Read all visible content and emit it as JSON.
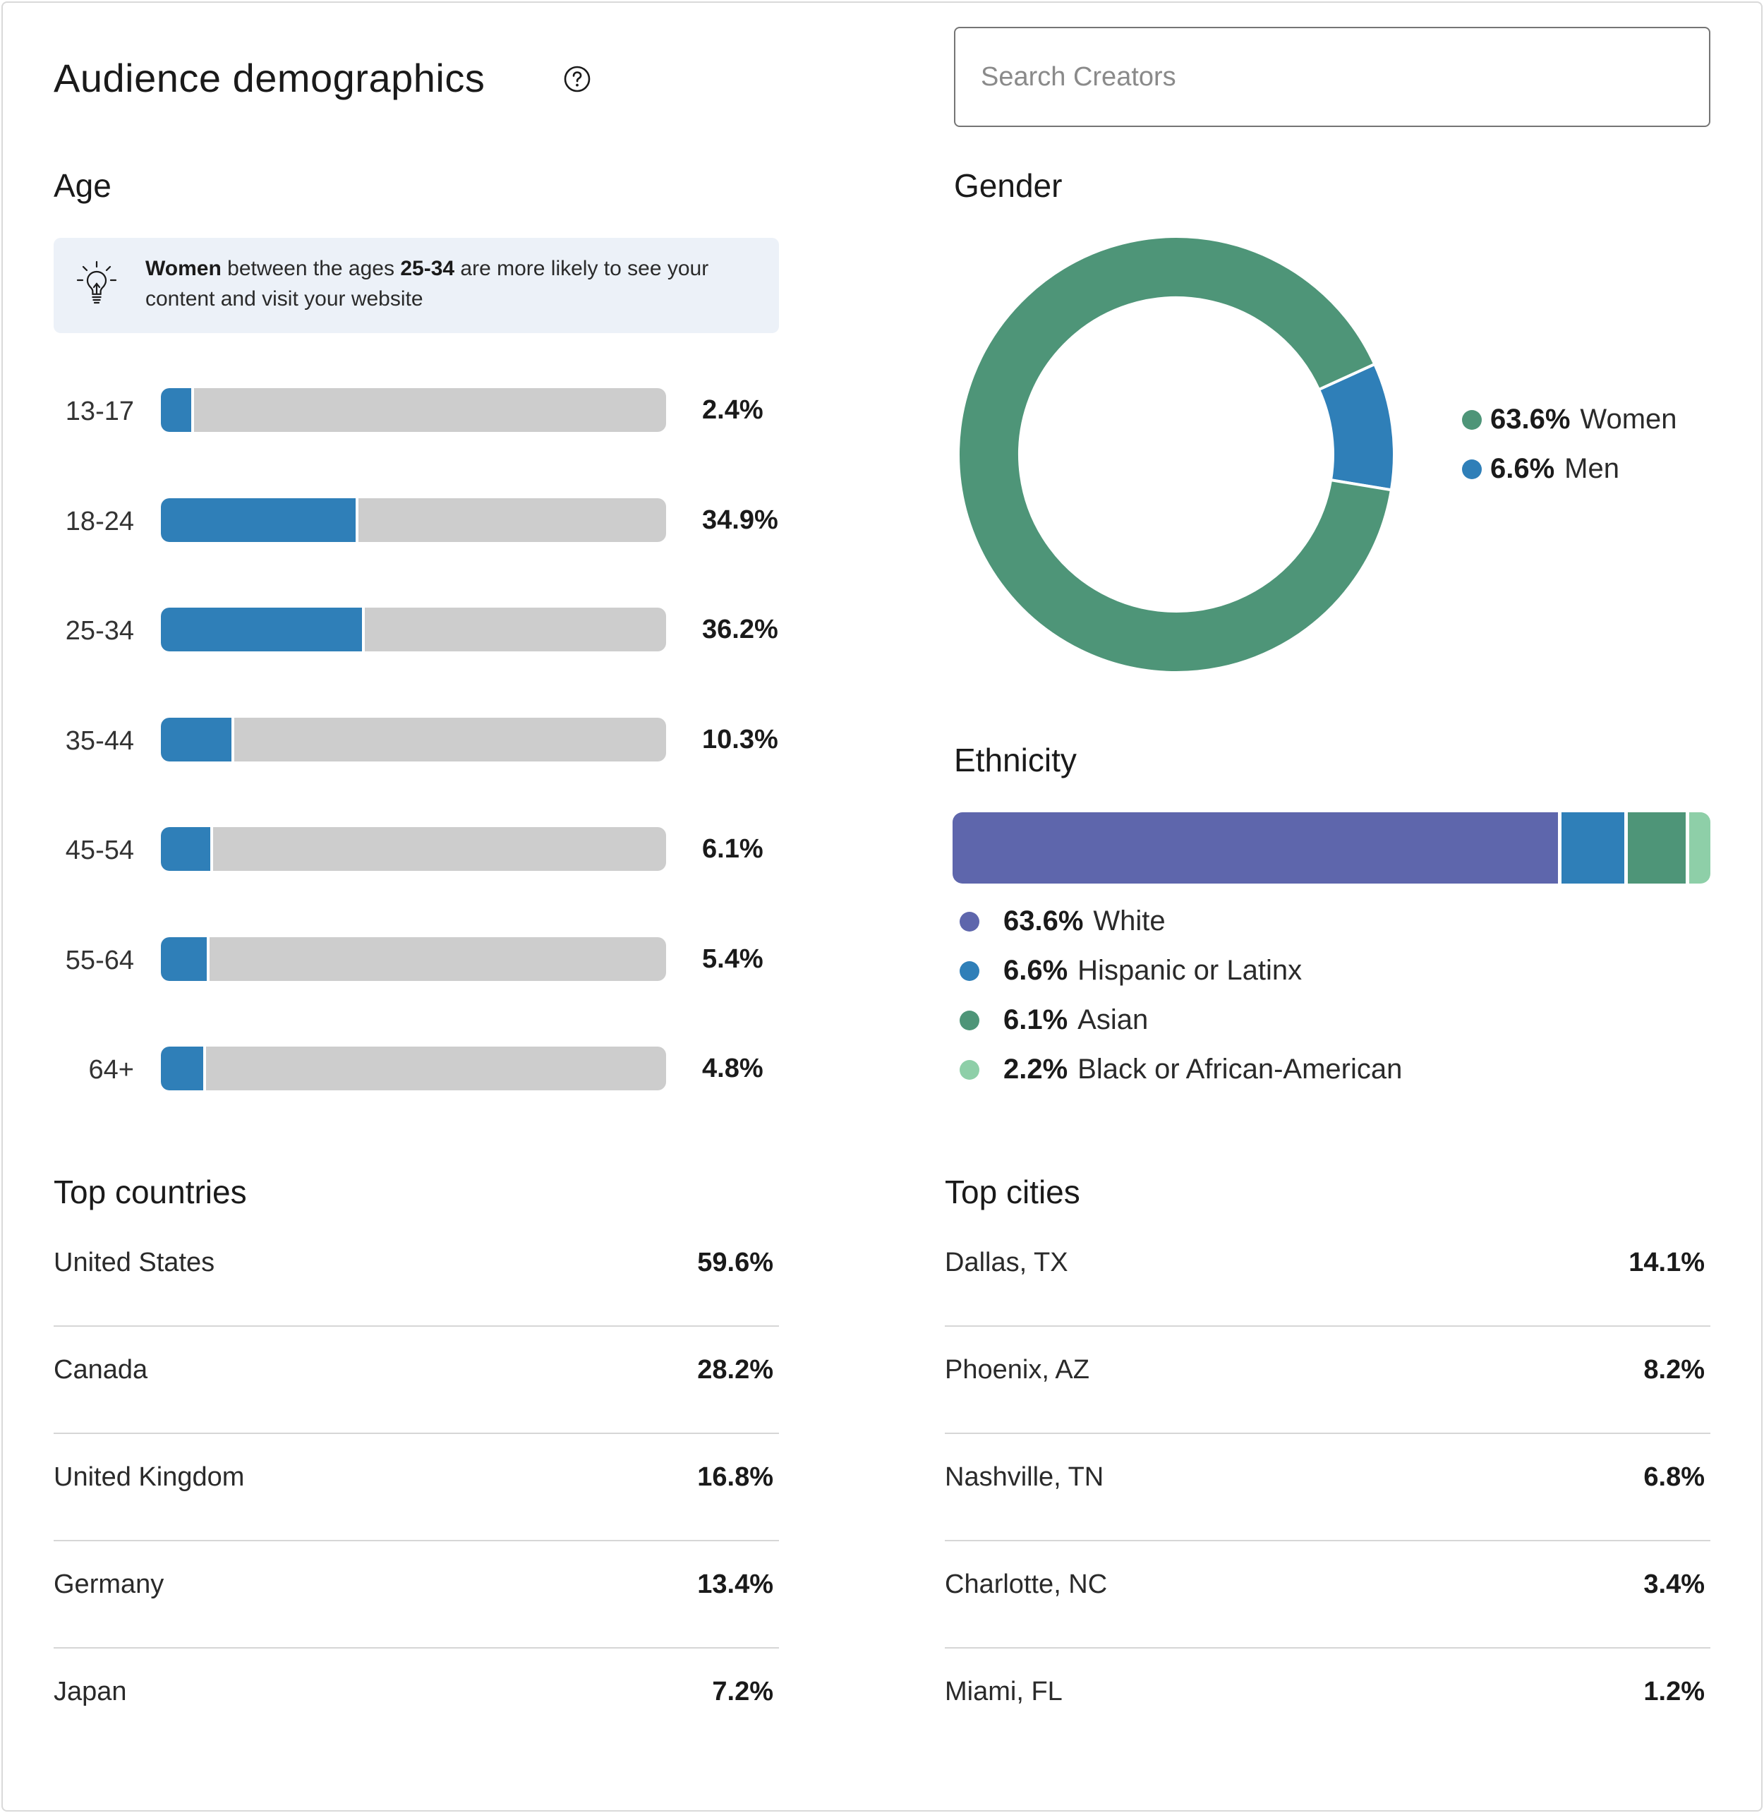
{
  "header": {
    "title": "Audience demographics",
    "search_placeholder": "Search Creators"
  },
  "age": {
    "title": "Age",
    "insight": {
      "bold1": "Women",
      "text1": " between the ages ",
      "bold2": "25-34",
      "text2": " are more likely to see your content and visit your website"
    },
    "rows": [
      {
        "label": "13-17",
        "value": "2.4%",
        "pct": 2.4
      },
      {
        "label": "18-24",
        "value": "34.9%",
        "pct": 34.9
      },
      {
        "label": "25-34",
        "value": "36.2%",
        "pct": 36.2
      },
      {
        "label": "35-44",
        "value": "10.3%",
        "pct": 10.3
      },
      {
        "label": "45-54",
        "value": "6.1%",
        "pct": 6.1
      },
      {
        "label": "55-64",
        "value": "5.4%",
        "pct": 5.4
      },
      {
        "label": "64+",
        "value": "4.8%",
        "pct": 4.8
      }
    ],
    "bar_color": "#2f7fb8",
    "track_color": "#cdcdcd"
  },
  "gender": {
    "title": "Gender",
    "legend": [
      {
        "value": "63.6%",
        "label": "Women",
        "color": "#4e9578"
      },
      {
        "value": "6.6%",
        "label": "Men",
        "color": "#2f7fb8"
      }
    ]
  },
  "ethnicity": {
    "title": "Ethnicity",
    "legend": [
      {
        "value": "63.6%",
        "label": "White",
        "color": "#5e66ac"
      },
      {
        "value": "6.6%",
        "label": "Hispanic or Latinx",
        "color": "#2f7fb8"
      },
      {
        "value": "6.1%",
        "label": "Asian",
        "color": "#4e9578"
      },
      {
        "value": "2.2%",
        "label": "Black or African-American",
        "color": "#8ecfa8"
      }
    ]
  },
  "countries": {
    "title": "Top countries",
    "rows": [
      {
        "name": "United States",
        "value": "59.6%"
      },
      {
        "name": "Canada",
        "value": "28.2%"
      },
      {
        "name": "United Kingdom",
        "value": "16.8%"
      },
      {
        "name": "Germany",
        "value": "13.4%"
      },
      {
        "name": "Japan",
        "value": "7.2%"
      }
    ]
  },
  "cities": {
    "title": "Top cities",
    "rows": [
      {
        "name": "Dallas, TX",
        "value": "14.1%"
      },
      {
        "name": "Phoenix, AZ",
        "value": "8.2%"
      },
      {
        "name": "Nashville, TN",
        "value": "6.8%"
      },
      {
        "name": "Charlotte, NC",
        "value": "3.4%"
      },
      {
        "name": "Miami, FL",
        "value": "1.2%"
      }
    ]
  },
  "chart_data": [
    {
      "type": "bar",
      "title": "Age",
      "categories": [
        "13-17",
        "18-24",
        "25-34",
        "35-44",
        "45-54",
        "55-64",
        "64+"
      ],
      "values": [
        2.4,
        34.9,
        36.2,
        10.3,
        6.1,
        5.4,
        4.8
      ],
      "ylim": [
        0,
        100
      ],
      "unit": "%"
    },
    {
      "type": "pie",
      "title": "Gender",
      "categories": [
        "Women",
        "Men"
      ],
      "values": [
        63.6,
        6.6
      ],
      "unit": "%"
    },
    {
      "type": "bar",
      "title": "Ethnicity",
      "stacked": true,
      "categories": [
        "White",
        "Hispanic or Latinx",
        "Asian",
        "Black or African-American"
      ],
      "values": [
        63.6,
        6.6,
        6.1,
        2.2
      ],
      "unit": "%"
    }
  ]
}
